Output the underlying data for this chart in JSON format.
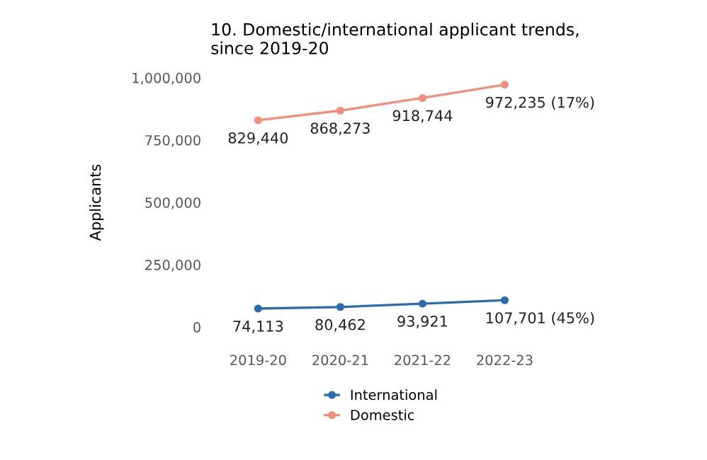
{
  "chart_data": {
    "type": "line",
    "title": "10. Domestic/international applicant trends,\nsince 2019-20",
    "ylabel": "Applicants",
    "categories": [
      "2019-20",
      "2020-21",
      "2021-22",
      "2022-23"
    ],
    "series": [
      {
        "name": "International",
        "color": "#2b6cb0",
        "values": [
          74113,
          80462,
          93921,
          107701
        ],
        "value_labels": [
          "74,113",
          "80,462",
          "93,921",
          "107,701 (45%)"
        ]
      },
      {
        "name": "Domestic",
        "color": "#f28e7a",
        "values": [
          829440,
          868273,
          918744,
          972235
        ],
        "value_labels": [
          "829,440",
          "868,273",
          "918,744",
          "972,235 (17%)"
        ]
      }
    ],
    "ylim": [
      0,
      1000000
    ],
    "yticks": [
      {
        "value": 0,
        "label": "0"
      },
      {
        "value": 250000,
        "label": "250,000"
      },
      {
        "value": 500000,
        "label": "500,000"
      },
      {
        "value": 750000,
        "label": "750,000"
      },
      {
        "value": 1000000,
        "label": "1,000,000"
      }
    ],
    "grid": false,
    "legend": "bottom",
    "marker": "circle",
    "line_style": "solid"
  }
}
